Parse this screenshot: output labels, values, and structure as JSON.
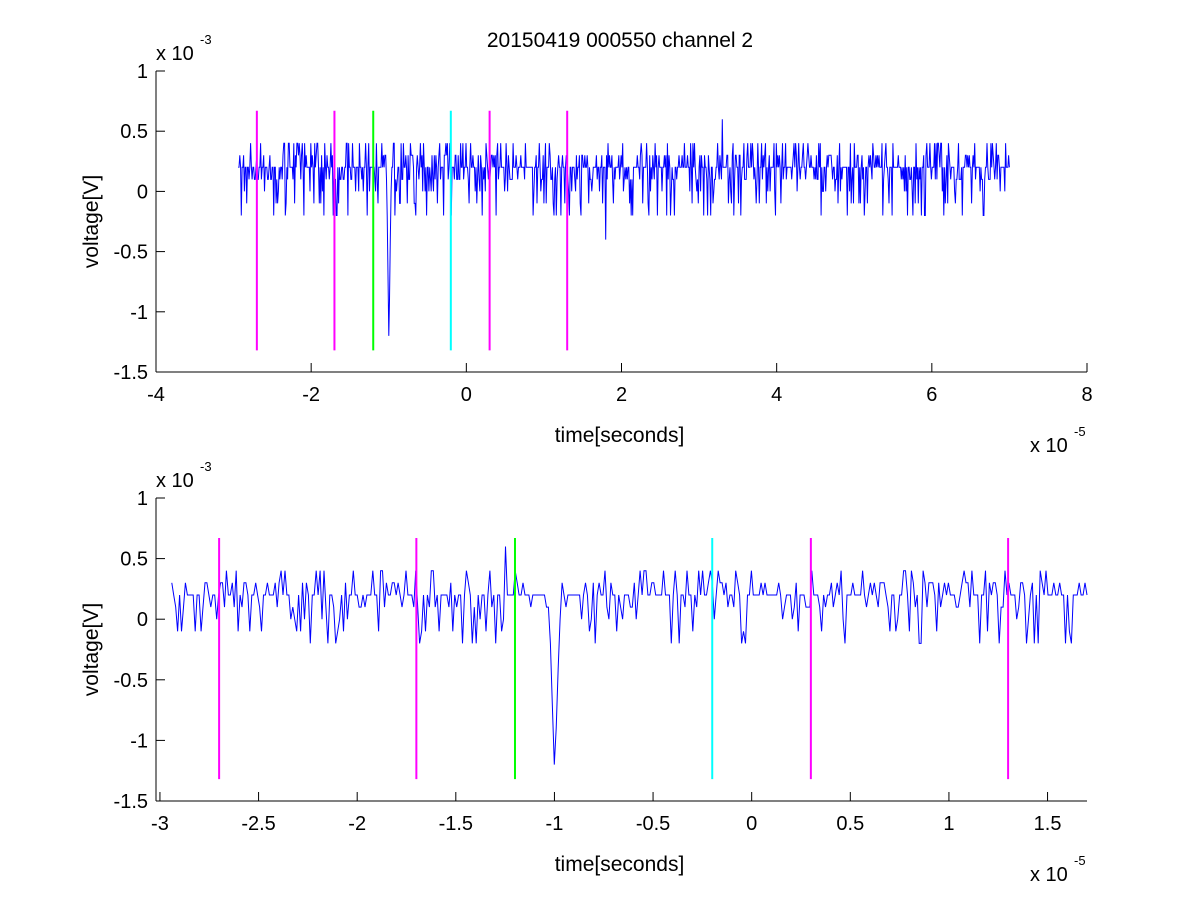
{
  "figure": {
    "title": "20150419 000550 channel 2"
  },
  "chart_data": [
    {
      "type": "line",
      "title": "20150419 000550 channel 2",
      "xlabel": "time[seconds]",
      "ylabel": "voltage[V]",
      "x_multiplier_label": "x 10",
      "x_multiplier_exponent": "-5",
      "y_multiplier_label": "x 10",
      "y_multiplier_exponent": "-3",
      "xlim": [
        -4e-05,
        8e-05
      ],
      "ylim": [
        -0.0015,
        0.001
      ],
      "x_ticks": [
        -4,
        -2,
        0,
        2,
        4,
        6,
        8
      ],
      "x_tick_labels": [
        "-4",
        "-2",
        "0",
        "2",
        "4",
        "6",
        "8"
      ],
      "y_ticks": [
        -1.5,
        -1,
        -0.5,
        0,
        0.5,
        1
      ],
      "y_tick_labels": [
        "-1.5",
        "-1",
        "-0.5",
        "0",
        "0.5",
        "1"
      ],
      "grid": false,
      "series_color": "#0000ff",
      "series": [
        {
          "x_start": -2.94e-05,
          "x_end": 7e-05,
          "baseline": 0.0002,
          "quantization": 0.0001,
          "note_values": [
            0.0004,
            0.0003,
            0.0002,
            0.0001,
            0,
            -0.0001,
            -0.0002
          ],
          "features": [
            {
              "x": -1e-05,
              "y": -0.0012
            },
            {
              "x": 3.3e-05,
              "y": 0.0006
            },
            {
              "x": 1.8e-05,
              "y": -0.0004
            }
          ]
        }
      ],
      "vertical_markers": [
        {
          "x": -2.7e-05,
          "y_bottom": -0.00132,
          "y_top": 0.00067,
          "color": "#ff00ff"
        },
        {
          "x": -1.7e-05,
          "y_bottom": -0.00132,
          "y_top": 0.00067,
          "color": "#ff00ff"
        },
        {
          "x": -1.2e-05,
          "y_bottom": -0.00132,
          "y_top": 0.00067,
          "color": "#00ff00"
        },
        {
          "x": -2e-06,
          "y_bottom": -0.00132,
          "y_top": 0.00067,
          "color": "#00ffff"
        },
        {
          "x": 3e-06,
          "y_bottom": -0.00132,
          "y_top": 0.00067,
          "color": "#ff00ff"
        },
        {
          "x": 1.3e-05,
          "y_bottom": -0.00132,
          "y_top": 0.00067,
          "color": "#ff00ff"
        }
      ]
    },
    {
      "type": "line",
      "title": "",
      "xlabel": "time[seconds]",
      "ylabel": "voltage[V]",
      "x_multiplier_label": "x 10",
      "x_multiplier_exponent": "-5",
      "y_multiplier_label": "x 10",
      "y_multiplier_exponent": "-3",
      "xlim": [
        -3.02e-05,
        1.7e-05
      ],
      "ylim": [
        -0.0015,
        0.001
      ],
      "x_ticks": [
        -3,
        -2.5,
        -2,
        -1.5,
        -1,
        -0.5,
        0,
        0.5,
        1,
        1.5
      ],
      "x_tick_labels": [
        "-3",
        "-2.5",
        "-2",
        "-1.5",
        "-1",
        "-0.5",
        "0",
        "0.5",
        "1",
        "1.5"
      ],
      "y_ticks": [
        -1.5,
        -1,
        -0.5,
        0,
        0.5,
        1
      ],
      "y_tick_labels": [
        "-1.5",
        "-1",
        "-0.5",
        "0",
        "0.5",
        "1"
      ],
      "grid": false,
      "series_color": "#0000ff",
      "series": [
        {
          "x_start": -2.94e-05,
          "x_end": 1.7e-05,
          "baseline": 0.0002,
          "quantization": 0.0001,
          "note_values": [
            0.0004,
            0.0003,
            0.0002,
            0.0001,
            0,
            -0.0001,
            -0.0002
          ],
          "features": [
            {
              "x": -1e-05,
              "y": -0.0012
            },
            {
              "x": -1.25e-05,
              "y": 0.0006
            }
          ]
        }
      ],
      "vertical_markers": [
        {
          "x": -2.7e-05,
          "y_bottom": -0.00132,
          "y_top": 0.00067,
          "color": "#ff00ff"
        },
        {
          "x": -1.7e-05,
          "y_bottom": -0.00132,
          "y_top": 0.00067,
          "color": "#ff00ff"
        },
        {
          "x": -1.2e-05,
          "y_bottom": -0.00132,
          "y_top": 0.00067,
          "color": "#00ff00"
        },
        {
          "x": -2e-06,
          "y_bottom": -0.00132,
          "y_top": 0.00067,
          "color": "#00ffff"
        },
        {
          "x": 3e-06,
          "y_bottom": -0.00132,
          "y_top": 0.00067,
          "color": "#ff00ff"
        },
        {
          "x": 1.3e-05,
          "y_bottom": -0.00132,
          "y_top": 0.00067,
          "color": "#ff00ff"
        }
      ]
    }
  ]
}
